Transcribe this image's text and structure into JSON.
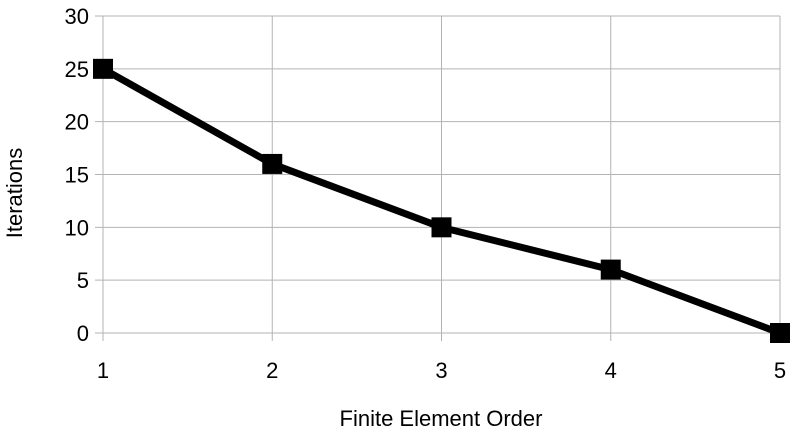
{
  "chart_data": {
    "type": "line",
    "title": "",
    "xlabel": "Finite Element Order",
    "ylabel": "Iterations",
    "x": [
      1,
      2,
      3,
      4,
      5
    ],
    "series": [
      {
        "values": [
          25,
          16,
          10,
          6,
          0
        ],
        "color": "#000000",
        "marker": "square"
      }
    ],
    "xlim": [
      1,
      5
    ],
    "ylim": [
      0,
      30
    ],
    "xticks": [
      1,
      2,
      3,
      4,
      5
    ],
    "yticks": [
      0,
      5,
      10,
      15,
      20,
      25,
      30
    ],
    "grid": true,
    "gridColor": "#b3b3b3",
    "legend": "none"
  }
}
